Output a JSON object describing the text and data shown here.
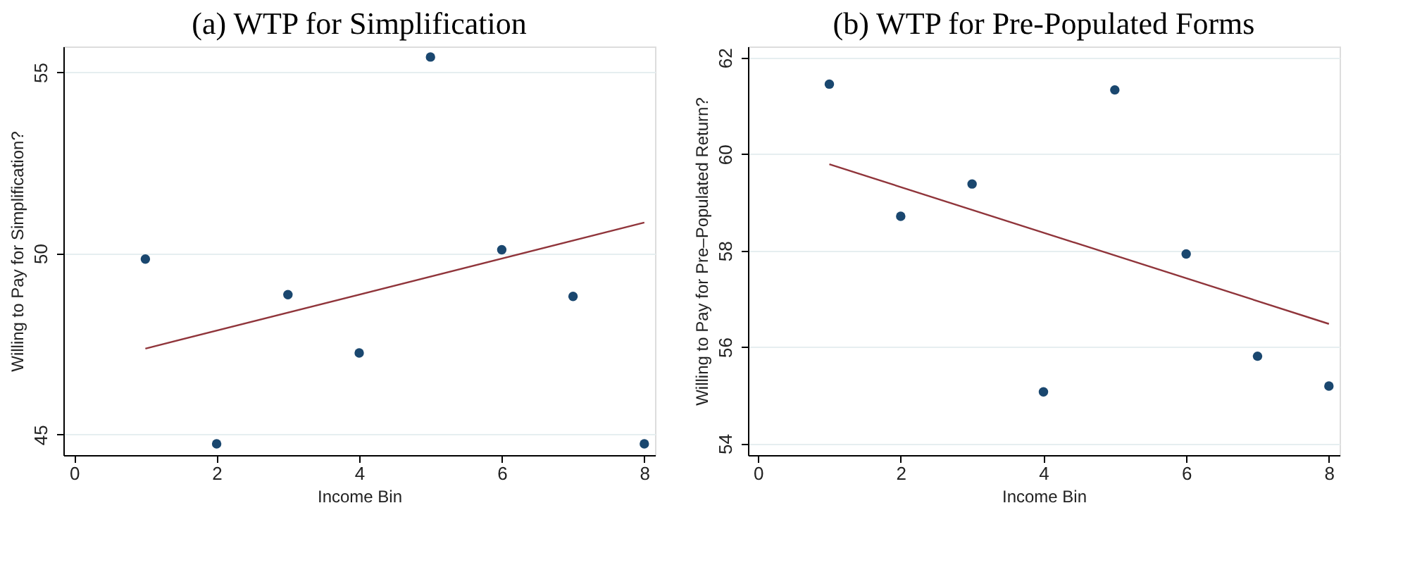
{
  "chart_data": [
    {
      "type": "scatter",
      "title": "(a) WTP for Simplification",
      "xlabel": "Income Bin",
      "ylabel": "Willing to Pay for Simplification?",
      "xlim": [
        -0.15,
        8.15
      ],
      "ylim": [
        44.43,
        55.71
      ],
      "xticks": [
        0,
        2,
        4,
        6,
        8
      ],
      "yticks": [
        45,
        50,
        55
      ],
      "grid": "y",
      "marker": "circle",
      "series": [
        {
          "color": "#1a476f",
          "x": [
            1,
            2,
            3,
            4,
            5,
            6,
            7,
            8
          ],
          "values": [
            49.84,
            44.74,
            48.86,
            47.25,
            55.42,
            50.1,
            48.81,
            44.74
          ]
        },
        {
          "type": "line",
          "color": "#90353b",
          "marker": "none",
          "line_style": "solid",
          "x": [
            1,
            8
          ],
          "values": [
            47.37,
            50.85
          ]
        }
      ]
    },
    {
      "type": "scatter",
      "title": "(b) WTP for Pre-Populated Forms",
      "xlabel": "Income Bin",
      "ylabel": "Willing to Pay for Pre–Populated Return?",
      "xlim": [
        -0.14,
        8.15
      ],
      "ylim": [
        53.76,
        62.23
      ],
      "xticks": [
        0,
        2,
        4,
        6,
        8
      ],
      "yticks": [
        54,
        56,
        58,
        60,
        62
      ],
      "grid": "y",
      "marker": "circle",
      "series": [
        {
          "color": "#1a476f",
          "x": [
            1,
            2,
            3,
            4,
            5,
            6,
            7,
            8
          ],
          "values": [
            61.45,
            58.71,
            59.38,
            55.07,
            61.33,
            57.93,
            55.81,
            55.19
          ]
        },
        {
          "type": "line",
          "color": "#90353b",
          "marker": "none",
          "line_style": "solid",
          "x": [
            1,
            8
          ],
          "values": [
            59.79,
            56.48
          ]
        }
      ]
    }
  ]
}
